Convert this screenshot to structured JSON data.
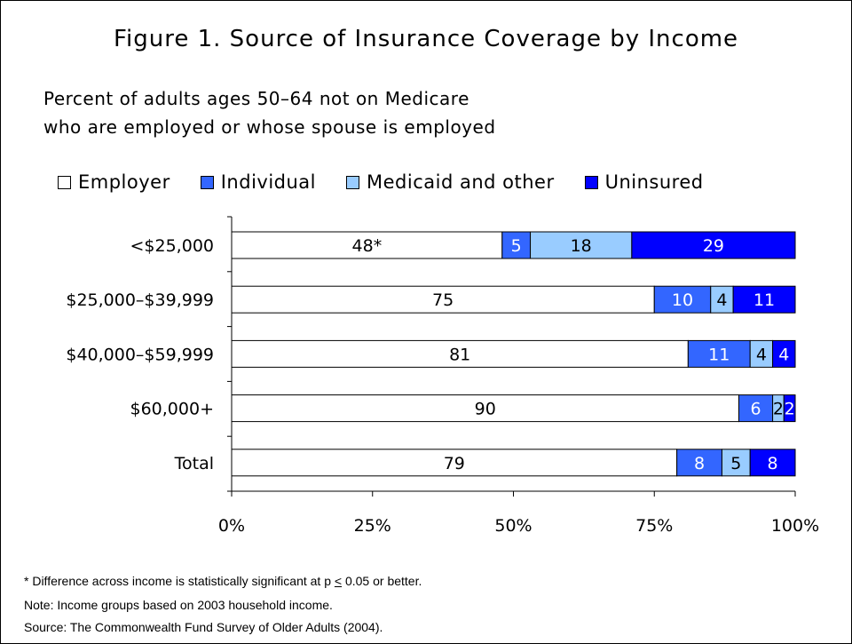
{
  "title": "Figure 1. Source of Insurance Coverage by Income",
  "subtitle_line1": "Percent of adults ages 50–64 not on Medicare",
  "subtitle_line2": "who are employed or whose spouse is employed",
  "chart_data": {
    "type": "bar",
    "orientation": "horizontal",
    "stacked": true,
    "categories": [
      "<$25,000",
      "$25,000–$39,999",
      "$40,000–$59,999",
      "$60,000+",
      "Total"
    ],
    "series": [
      {
        "name": "Employer",
        "color": "#ffffff",
        "values": [
          48,
          75,
          81,
          90,
          79
        ],
        "labels": [
          "48*",
          "75",
          "81",
          "90",
          "79"
        ]
      },
      {
        "name": "Individual",
        "color": "#3366ff",
        "values": [
          5,
          10,
          11,
          6,
          8
        ],
        "labels": [
          "5",
          "10",
          "11",
          "6",
          "8"
        ]
      },
      {
        "name": "Medicaid and other",
        "color": "#99ccff",
        "values": [
          18,
          4,
          4,
          2,
          5
        ],
        "labels": [
          "18",
          "4",
          "4",
          "2",
          "5"
        ]
      },
      {
        "name": "Uninsured",
        "color": "#0000ff",
        "values": [
          29,
          11,
          4,
          2,
          8
        ],
        "labels": [
          "29",
          "11",
          "4",
          "2",
          "8"
        ]
      }
    ],
    "xlim": [
      0,
      100
    ],
    "x_ticks": [
      "0%",
      "25%",
      "50%",
      "75%",
      "100%"
    ],
    "legend_position": "top",
    "grid": false
  },
  "footnotes": {
    "line1_prefix": "* Difference across income is statistically significant at p ",
    "line1_symbol": "<",
    "line1_suffix": " 0.05 or better.",
    "line2": "Note: Income groups based on 2003 household income.",
    "line3": "Source: The Commonwealth Fund Survey of Older Adults (2004)."
  }
}
